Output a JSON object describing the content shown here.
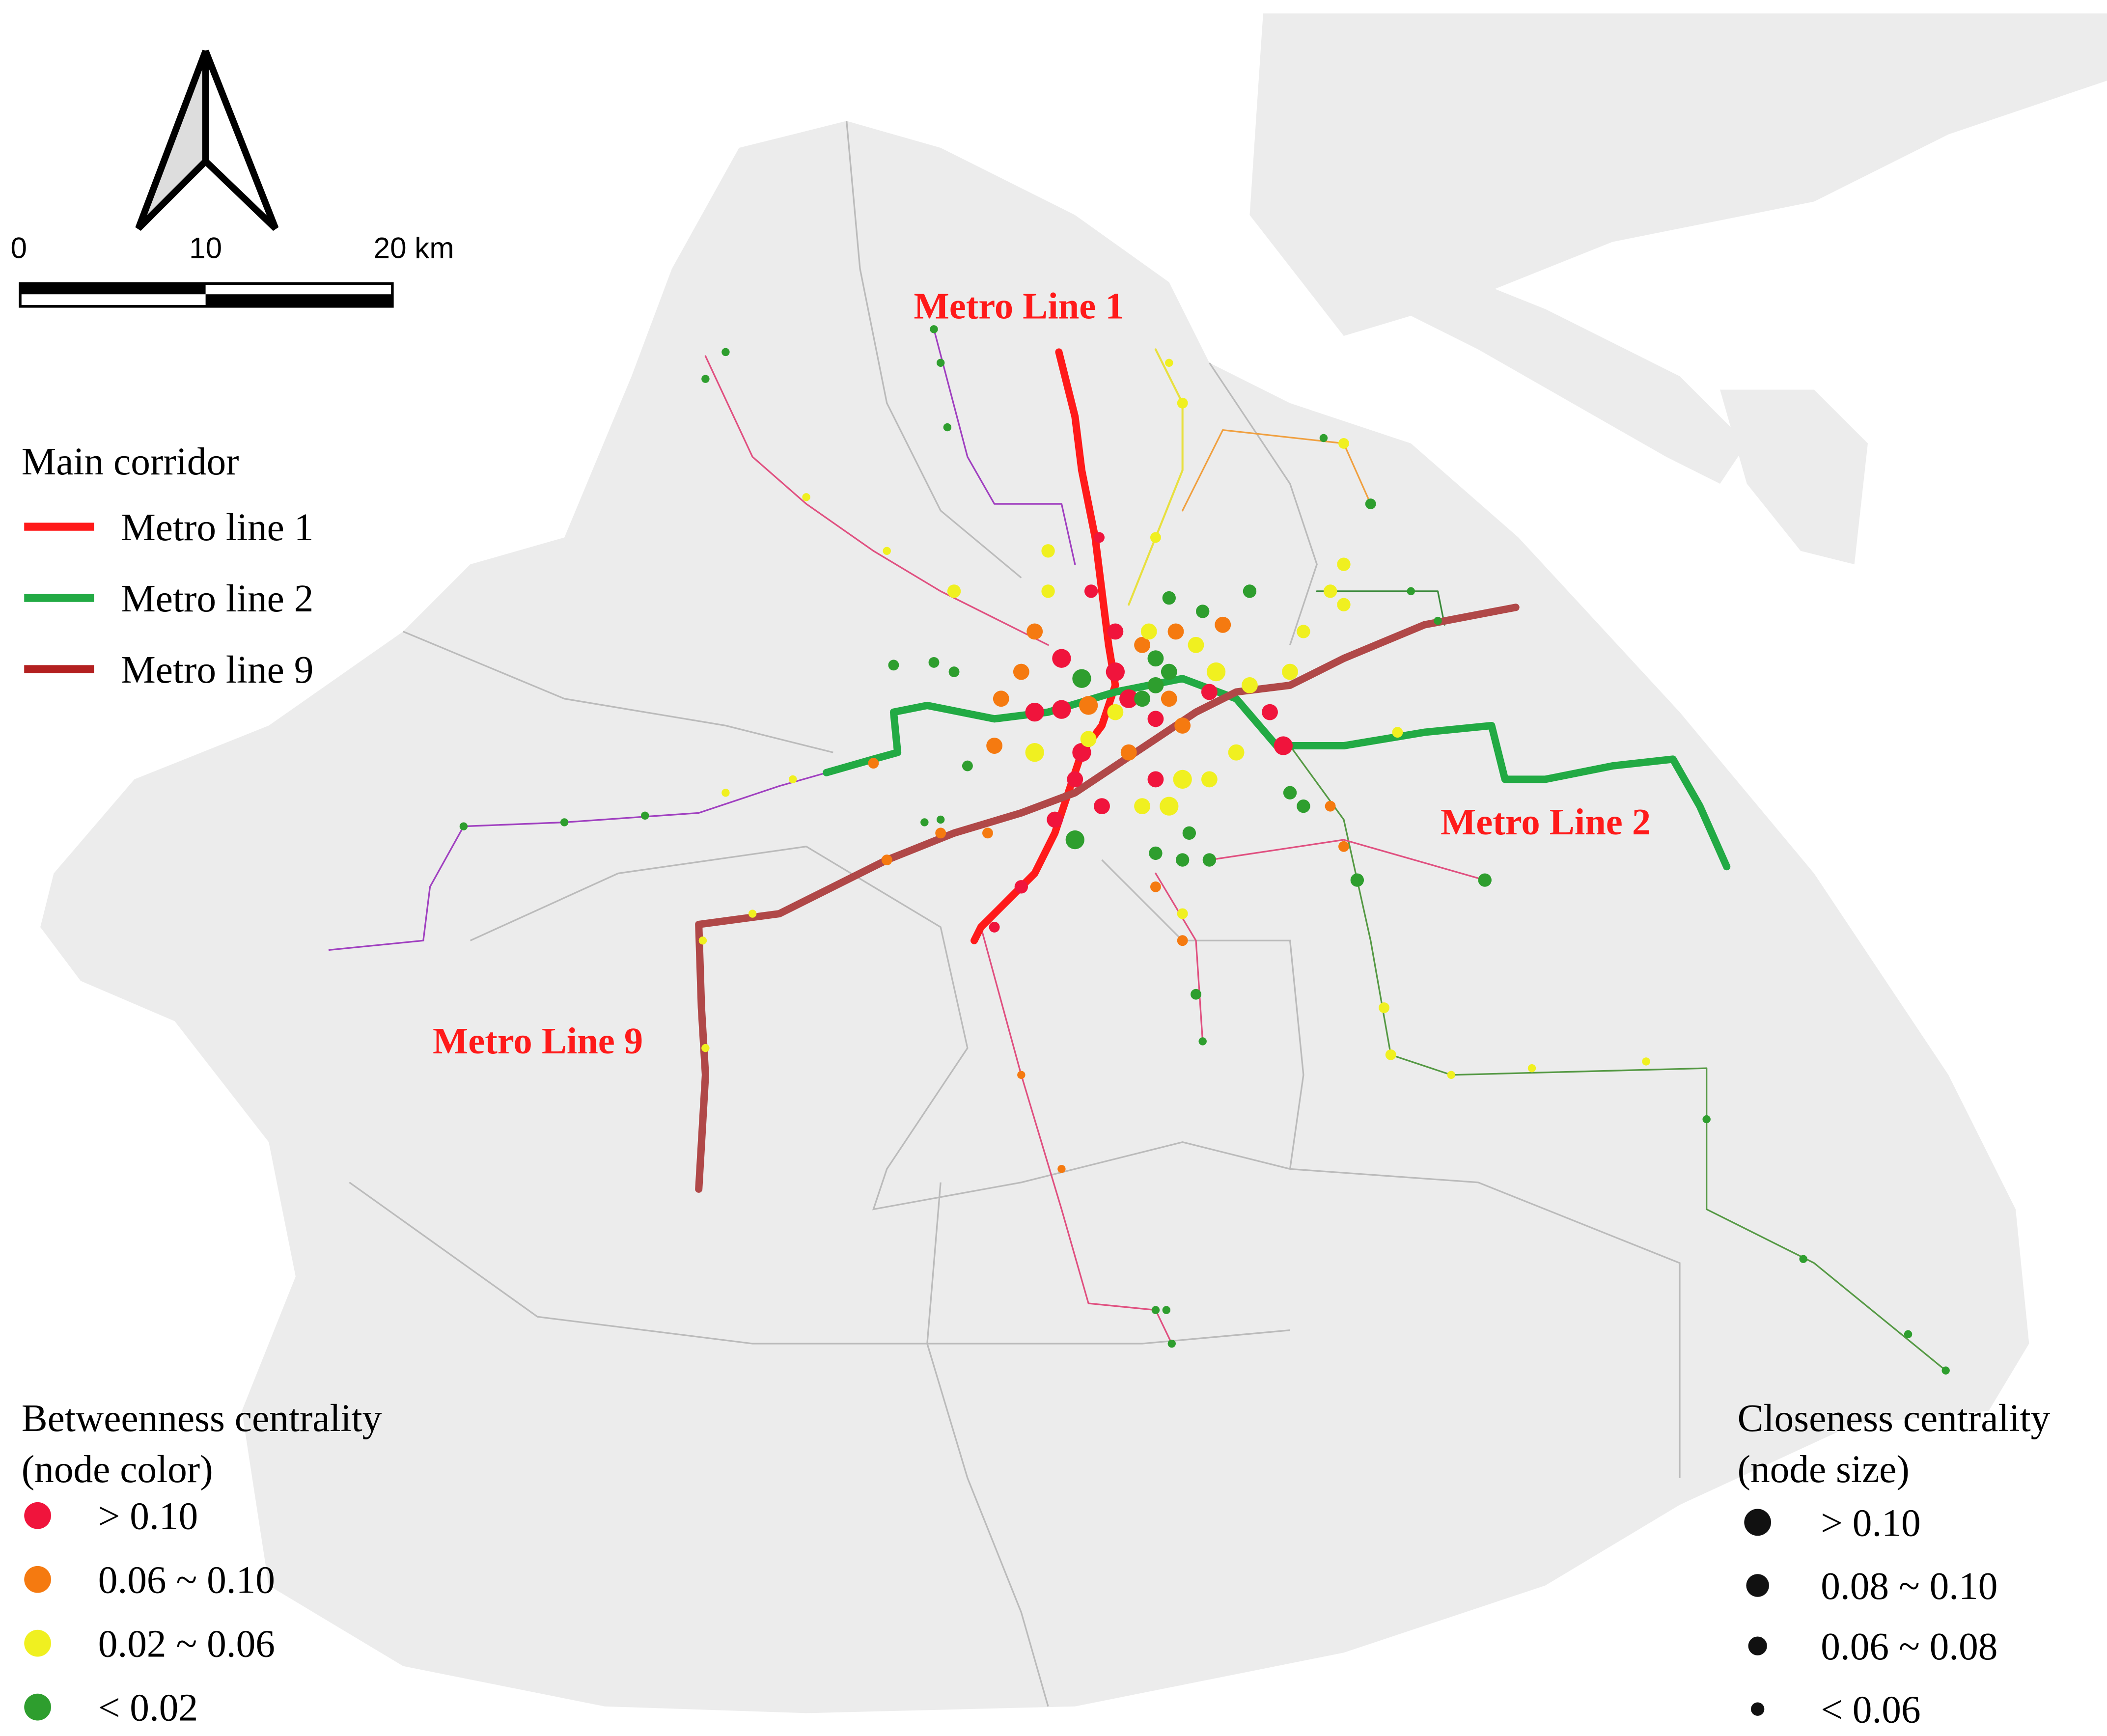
{
  "scale_bar": {
    "labels": [
      "0",
      "10",
      "20 km"
    ]
  },
  "legend_corridor": {
    "title": "Main corridor",
    "items": [
      {
        "label": "Metro line 1",
        "color": "#ff1a1a"
      },
      {
        "label": "Metro line 2",
        "color": "#22aa44"
      },
      {
        "label": "Metro line 9",
        "color": "#b32020"
      }
    ]
  },
  "annotations": [
    "Metro Line 1",
    "Metro Line 2",
    "Metro Line 9"
  ],
  "legend_betweenness": {
    "title": [
      "Betweenness centrality",
      "(node color)"
    ],
    "items": [
      {
        "label": "> 0.10",
        "color": "#f0143c"
      },
      {
        "label": "0.06 ~ 0.10",
        "color": "#f57a10"
      },
      {
        "label": "0.02 ~ 0.06",
        "color": "#f0f020"
      },
      {
        "label": "< 0.02",
        "color": "#2e9e2e"
      }
    ]
  },
  "legend_closeness": {
    "title": [
      "Closeness centrality",
      "(node size)"
    ],
    "items": [
      "> 0.10",
      "0.08 ~ 0.10",
      "0.06 ~ 0.08",
      "< 0.06"
    ]
  }
}
